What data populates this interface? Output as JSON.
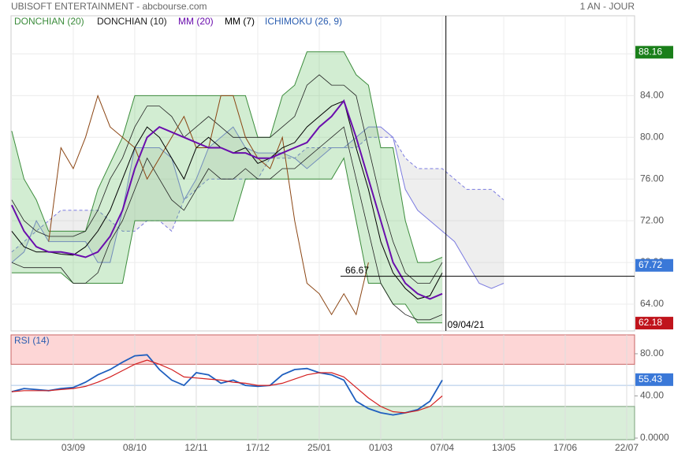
{
  "chart_data": {
    "type": "stock",
    "title": "UBISOFT ENTERTAINMENT - abcbourse.com",
    "period": "1 AN - JOUR",
    "xlim": [
      -5.06,
      45.64
    ],
    "xticks": [
      {
        "value": 0,
        "label": "03/09"
      },
      {
        "value": 5,
        "label": "08/10"
      },
      {
        "value": 10,
        "label": "12/11"
      },
      {
        "value": 15,
        "label": "17/12"
      },
      {
        "value": 20,
        "label": "25/01"
      },
      {
        "value": 25,
        "label": "01/03"
      },
      {
        "value": 30,
        "label": "07/04"
      },
      {
        "value": 35,
        "label": "13/05"
      },
      {
        "value": 40,
        "label": "17/06"
      },
      {
        "value": 45,
        "label": "22/07"
      }
    ],
    "ylim": [
      61.43,
      91.66
    ],
    "yticks": [
      {
        "value": 64,
        "label": "64.00"
      },
      {
        "value": 68,
        "label": "68.00"
      },
      {
        "value": 72,
        "label": "72.00"
      },
      {
        "value": 76,
        "label": "76.00"
      },
      {
        "value": 80,
        "label": "80.00"
      },
      {
        "value": 84,
        "label": "84.00"
      },
      {
        "value": 88,
        "label": "88.00"
      }
    ],
    "grid": true,
    "x": [
      -5,
      -4,
      -3,
      -2,
      -1,
      0,
      1,
      2,
      3,
      4,
      5,
      6,
      7,
      8,
      9,
      10,
      11,
      12,
      13,
      14,
      15,
      16,
      17,
      18,
      19,
      20,
      21,
      22,
      23,
      24,
      25,
      26,
      27,
      28,
      29,
      30
    ],
    "series": [
      {
        "name": "DONCHIAN (20)",
        "color": "#3c8c3c",
        "upper": [
          80.6,
          76,
          74,
          71,
          71,
          71,
          71,
          75,
          77.5,
          80,
          84,
          84,
          84,
          84,
          84,
          84,
          84,
          84,
          84,
          84,
          80,
          80,
          84,
          85,
          88.2,
          88.2,
          88.2,
          88.2,
          86,
          85,
          79,
          79,
          72,
          68,
          68,
          68.5
        ],
        "lower": [
          67,
          67,
          67,
          67,
          67,
          66,
          66,
          66,
          66,
          66,
          72,
          72,
          72,
          72,
          72,
          72,
          72,
          72,
          72,
          76,
          76,
          76,
          76,
          76,
          76,
          76,
          76,
          78,
          72,
          66,
          66,
          64,
          64,
          62.2,
          62.2,
          62.2
        ]
      },
      {
        "name": "DONCHIAN (10)",
        "color": "#222222",
        "upper": [
          74,
          72,
          71,
          70.5,
          70.5,
          70.5,
          71,
          73,
          76,
          78,
          81,
          83,
          83,
          82,
          80,
          81,
          82,
          81,
          80,
          80,
          80,
          80,
          81,
          82,
          85,
          86,
          85,
          85,
          84,
          79,
          74,
          70,
          67,
          66,
          66,
          68
        ],
        "lower": [
          68,
          67.5,
          67.5,
          67.5,
          67.5,
          66,
          66,
          67,
          70,
          72,
          75,
          78,
          76,
          74,
          73,
          75,
          77,
          76,
          76,
          77,
          76,
          76,
          77,
          77,
          78,
          79,
          80,
          81,
          76,
          71,
          66,
          64,
          63,
          62.5,
          62.5,
          63
        ]
      },
      {
        "name": "MM (20)",
        "color": "#6a0dad",
        "values": [
          73.5,
          71,
          69.5,
          69,
          69,
          68.8,
          68.5,
          69,
          70.5,
          73,
          77,
          80,
          81,
          80.5,
          80,
          79.5,
          79,
          79,
          78.5,
          78.5,
          78,
          78,
          78.5,
          79,
          79.5,
          81,
          82,
          83.5,
          80,
          76,
          72,
          68,
          66,
          65,
          64.5,
          65
        ]
      },
      {
        "name": "MM (7)",
        "color": "#000000",
        "values": [
          71,
          69.5,
          69,
          69,
          68.8,
          68.7,
          69.5,
          71,
          73,
          76,
          79,
          81,
          80,
          78,
          76,
          79,
          80,
          79,
          78.5,
          79,
          77.5,
          78,
          79,
          79.5,
          81,
          82,
          83,
          83.5,
          79,
          75,
          70,
          67,
          65.5,
          64.5,
          64.8,
          67
        ]
      },
      {
        "name": "ICHIMOKU (26, 9)",
        "color": "#2a5db0",
        "chikou": {
          "color": "#8b4513",
          "x": [
            -2,
            -1,
            0,
            1,
            2,
            3,
            4,
            5,
            6,
            7,
            8,
            9,
            10,
            11,
            12,
            13,
            14,
            15,
            16,
            17,
            18,
            19,
            20,
            21,
            22,
            23,
            24
          ],
          "values": [
            70,
            79,
            77,
            80,
            84,
            81,
            80,
            79,
            76,
            78,
            80,
            82,
            79,
            79,
            84,
            84,
            80,
            78,
            77,
            80,
            72,
            66,
            65,
            63,
            65,
            63,
            68
          ]
        },
        "cloud": {
          "color": "#7b7be0",
          "fill": "#bbbbbb",
          "x": [
            -5,
            -4,
            -3,
            -2,
            -1,
            0,
            1,
            2,
            3,
            4,
            5,
            6,
            7,
            8,
            9,
            10,
            11,
            12,
            13,
            14,
            15,
            16,
            17,
            18,
            19,
            20,
            21,
            22,
            23,
            24,
            25,
            26,
            27,
            28,
            29,
            30,
            31,
            32,
            33,
            34,
            35
          ],
          "senkou_a": [
            68,
            69,
            72,
            70,
            70,
            70,
            70,
            68,
            68,
            73,
            79,
            79,
            79,
            78,
            74,
            76,
            79,
            80,
            81,
            79,
            78.5,
            78.5,
            78.5,
            78,
            77,
            78,
            79,
            79,
            80,
            81,
            81,
            80,
            75,
            73,
            72,
            71,
            70,
            68,
            66,
            65.5,
            66
          ],
          "senkou_b": [
            69,
            70,
            71,
            72,
            73,
            73,
            73,
            73,
            72,
            71,
            71,
            72,
            72,
            71,
            74,
            75,
            76,
            76,
            76,
            76,
            76,
            78,
            78,
            78,
            79,
            79,
            79,
            79,
            79,
            80,
            80,
            80,
            78,
            77,
            77,
            77,
            76,
            75,
            75,
            75,
            74
          ]
        }
      }
    ],
    "price_tags": [
      {
        "value": 88.16,
        "color": "#1a7f1a"
      },
      {
        "value": 67.72,
        "color": "#3a78d8"
      },
      {
        "value": 62.18,
        "color": "#c0141c"
      }
    ],
    "crosshair": {
      "x": 30.3,
      "x_label": "09/04/21",
      "value": 66.67
    },
    "rsi": {
      "title": "RSI (14)",
      "ylim": [
        -1.5,
        97.9
      ],
      "yticks": [
        {
          "value": 80,
          "label": "80.00"
        },
        {
          "value": 40,
          "label": "40.00"
        },
        {
          "value": 0,
          "label": "0.0000"
        }
      ],
      "overbought": 70,
      "oversold": 30,
      "midline": 50,
      "series": [
        {
          "color": "#1f5fbf",
          "values": [
            44,
            47,
            46,
            45,
            47,
            48,
            53,
            60,
            65,
            72,
            78,
            79,
            65,
            55,
            50,
            62,
            60,
            52,
            55,
            50,
            49,
            50,
            60,
            65,
            66,
            62,
            60,
            55,
            35,
            28,
            24,
            22,
            24,
            27,
            35,
            55
          ]
        },
        {
          "color": "#d42020",
          "values": [
            44,
            45,
            45,
            45,
            46,
            47,
            49,
            53,
            58,
            64,
            70,
            74,
            70,
            65,
            58,
            57,
            56,
            55,
            53,
            52,
            50,
            50,
            52,
            56,
            60,
            62,
            62,
            58,
            48,
            38,
            30,
            25,
            24,
            26,
            30,
            40
          ]
        }
      ],
      "tag": {
        "value": 55.43,
        "color": "#3a78d8"
      }
    }
  }
}
